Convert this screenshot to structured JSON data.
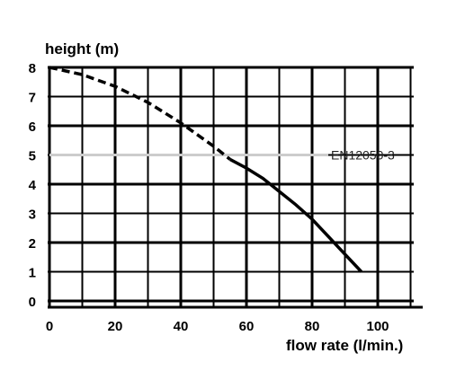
{
  "chart_data": {
    "type": "line",
    "title": "",
    "xlabel": "flow rate (l/min.)",
    "ylabel": "height (m)",
    "xlim": [
      0,
      110
    ],
    "ylim": [
      0,
      8
    ],
    "x_ticks": [
      "0",
      "20",
      "40",
      "60",
      "80",
      "100"
    ],
    "y_ticks": [
      "0",
      "1",
      "2",
      "3",
      "4",
      "5",
      "6",
      "7",
      "8"
    ],
    "grid": true,
    "series": [
      {
        "style": "dashed",
        "color": "#000000",
        "x": [
          0,
          10,
          20,
          30,
          40,
          50,
          55
        ],
        "y": [
          8,
          7.75,
          7.35,
          6.8,
          6.1,
          5.3,
          4.85
        ]
      },
      {
        "style": "solid",
        "color": "#000000",
        "x": [
          55,
          60,
          65,
          70,
          75,
          80,
          85,
          90,
          95
        ],
        "y": [
          4.85,
          4.55,
          4.2,
          3.75,
          3.3,
          2.8,
          2.2,
          1.6,
          1.0
        ]
      }
    ],
    "reference_line": {
      "y": 5,
      "label": "EN12050-3",
      "color": "#cccccc"
    }
  }
}
